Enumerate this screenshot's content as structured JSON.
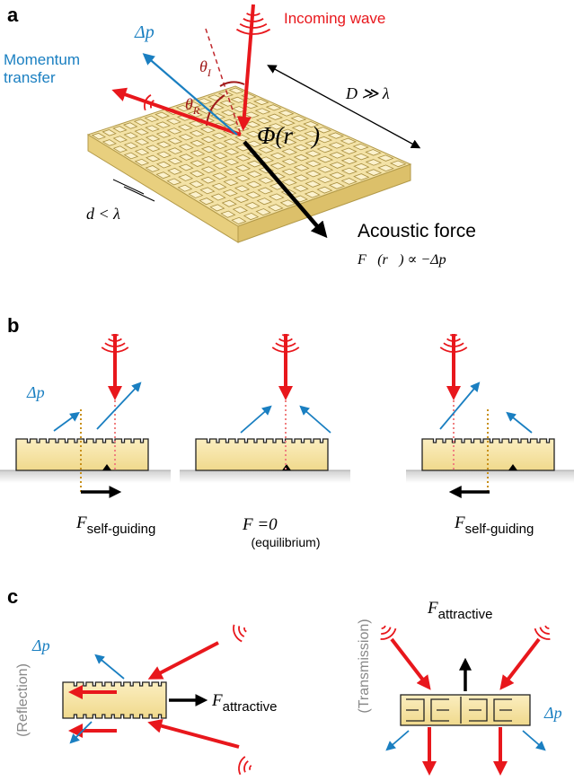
{
  "panel_a": {
    "label": "a",
    "incoming_wave": "Incoming wave",
    "delta_p": "Δp⃗",
    "momentum_transfer": [
      "Momentum",
      "transfer"
    ],
    "theta_i": [
      "θ",
      "I"
    ],
    "theta_r": [
      "θ",
      "R"
    ],
    "size": "D ≫ λ",
    "phase": "Φ(r⃗)",
    "period": "d < λ",
    "force_title": "Acoustic force",
    "force_formula": "F⃗(r⃗) ∝ −Δp⃗"
  },
  "panel_b": {
    "label": "b",
    "delta_p": "Δp⃗",
    "left_force": [
      "F",
      "self-guiding"
    ],
    "center_force": "F =0",
    "center_note": "(equilibrium)",
    "right_force": [
      "F",
      "self-guiding"
    ]
  },
  "panel_c": {
    "label": "c",
    "reflection": {
      "label": "(Reflection)",
      "delta_p": "Δp⃗",
      "force": [
        "F",
        "attractive"
      ]
    },
    "transmission": {
      "label": "(Transmission)",
      "delta_p": "Δp⃗",
      "force": [
        "F",
        "attractive"
      ]
    }
  }
}
